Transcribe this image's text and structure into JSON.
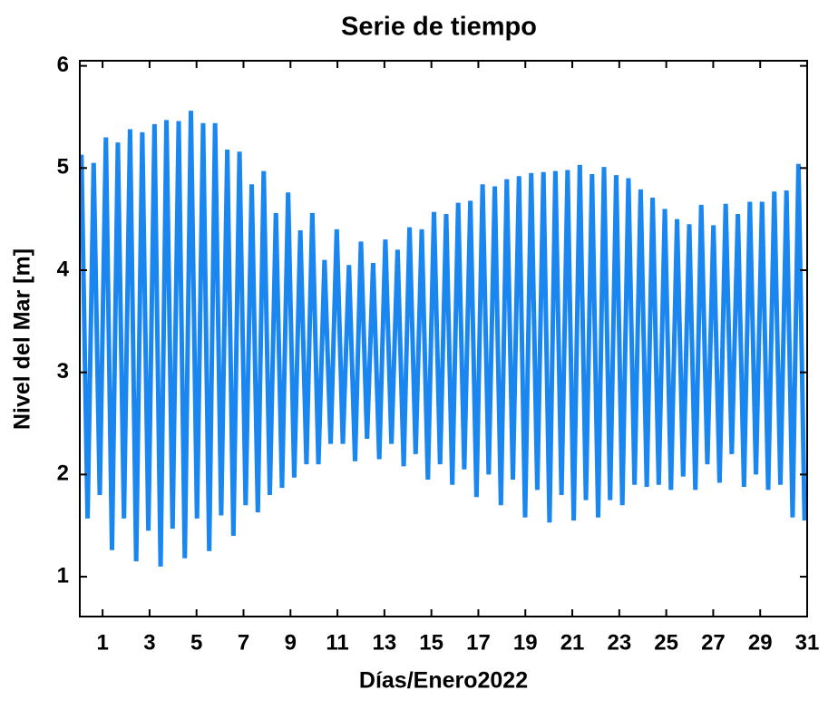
{
  "chart_data": {
    "type": "line",
    "title": "Serie de tiempo",
    "xlabel": "Días/Enero2022",
    "ylabel": "Nivel del Mar [m]",
    "xlim": [
      0.03,
      31
    ],
    "ylim": [
      0.61,
      6.05
    ],
    "xticks": [
      1,
      3,
      5,
      7,
      9,
      11,
      13,
      15,
      17,
      19,
      21,
      23,
      25,
      27,
      29,
      31
    ],
    "yticks": [
      1,
      2,
      3,
      4,
      5,
      6
    ],
    "x": [
      0.1,
      0.36,
      0.62,
      0.88,
      1.14,
      1.4,
      1.65,
      1.91,
      2.17,
      2.43,
      2.69,
      2.95,
      3.21,
      3.47,
      3.72,
      3.98,
      4.24,
      4.5,
      4.76,
      5.02,
      5.28,
      5.54,
      5.79,
      6.05,
      6.31,
      6.57,
      6.83,
      7.09,
      7.35,
      7.61,
      7.86,
      8.12,
      8.38,
      8.64,
      8.9,
      9.16,
      9.42,
      9.68,
      9.93,
      10.19,
      10.45,
      10.71,
      10.97,
      11.23,
      11.49,
      11.75,
      12.0,
      12.26,
      12.52,
      12.78,
      13.04,
      13.3,
      13.56,
      13.82,
      14.07,
      14.33,
      14.59,
      14.85,
      15.11,
      15.37,
      15.63,
      15.89,
      16.14,
      16.4,
      16.66,
      16.92,
      17.18,
      17.44,
      17.7,
      17.96,
      18.21,
      18.47,
      18.73,
      18.99,
      19.25,
      19.51,
      19.77,
      20.03,
      20.28,
      20.54,
      20.8,
      21.06,
      21.32,
      21.58,
      21.84,
      22.1,
      22.35,
      22.61,
      22.87,
      23.13,
      23.39,
      23.65,
      23.91,
      24.17,
      24.42,
      24.68,
      24.94,
      25.2,
      25.46,
      25.72,
      25.98,
      26.24,
      26.49,
      26.75,
      27.01,
      27.27,
      27.53,
      27.79,
      28.05,
      28.31,
      28.56,
      28.82,
      29.08,
      29.34,
      29.6,
      29.86,
      30.12,
      30.38,
      30.63,
      30.89
    ],
    "series": [
      {
        "color": "#1a86f0",
        "values": [
          5.13,
          1.57,
          5.05,
          1.8,
          5.3,
          1.26,
          5.25,
          1.57,
          5.38,
          1.15,
          5.35,
          1.45,
          5.43,
          1.1,
          5.47,
          1.47,
          5.46,
          1.18,
          5.56,
          1.57,
          5.44,
          1.25,
          5.44,
          1.6,
          5.18,
          1.4,
          5.16,
          1.7,
          4.84,
          1.63,
          4.97,
          1.8,
          4.56,
          1.87,
          4.76,
          1.97,
          4.39,
          2.1,
          4.56,
          2.1,
          4.1,
          2.3,
          4.4,
          2.3,
          4.05,
          2.13,
          4.28,
          2.35,
          4.07,
          2.15,
          4.3,
          2.3,
          4.2,
          2.08,
          4.42,
          2.2,
          4.4,
          1.95,
          4.57,
          2.1,
          4.55,
          1.9,
          4.66,
          2.05,
          4.68,
          1.78,
          4.84,
          2.0,
          4.82,
          1.7,
          4.89,
          1.95,
          4.92,
          1.58,
          4.95,
          1.85,
          4.96,
          1.53,
          4.97,
          1.8,
          4.98,
          1.55,
          5.03,
          1.75,
          4.94,
          1.58,
          5.01,
          1.75,
          4.93,
          1.7,
          4.9,
          1.9,
          4.79,
          1.88,
          4.71,
          1.9,
          4.6,
          1.85,
          4.5,
          1.98,
          4.45,
          1.85,
          4.64,
          2.1,
          4.44,
          1.92,
          4.65,
          2.2,
          4.55,
          1.88,
          4.67,
          2.0,
          4.67,
          1.85,
          4.77,
          1.9,
          4.78,
          1.58,
          5.04,
          1.55
        ]
      }
    ]
  }
}
